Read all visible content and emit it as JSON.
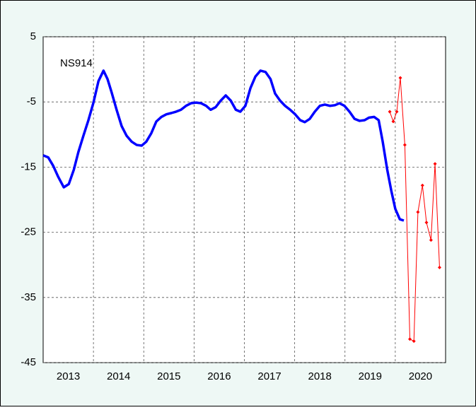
{
  "chart_data": {
    "type": "line",
    "annotation": "NS914",
    "xlim": [
      2013,
      2021
    ],
    "xgrid": [
      2014,
      2015,
      2016,
      2017,
      2018,
      2019,
      2020
    ],
    "xticks": [
      {
        "value": 2013.5,
        "label": "2013"
      },
      {
        "value": 2014.5,
        "label": "2014"
      },
      {
        "value": 2015.5,
        "label": "2015"
      },
      {
        "value": 2016.5,
        "label": "2016"
      },
      {
        "value": 2017.5,
        "label": "2017"
      },
      {
        "value": 2018.5,
        "label": "2018"
      },
      {
        "value": 2019.5,
        "label": "2019"
      },
      {
        "value": 2020.5,
        "label": "2020"
      }
    ],
    "ylim": [
      -45,
      5
    ],
    "yticks": [
      5,
      -5,
      -15,
      -25,
      -35,
      -45
    ],
    "grid": true,
    "series": [
      {
        "color": "#0000ff",
        "width": 3.5,
        "markers": false,
        "x": [
          2013.0,
          2013.1,
          2013.2,
          2013.3,
          2013.41,
          2013.51,
          2013.61,
          2013.7,
          2013.8,
          2013.9,
          2014.0,
          2014.1,
          2014.2,
          2014.28,
          2014.36,
          2014.46,
          2014.56,
          2014.66,
          2014.76,
          2014.86,
          2014.96,
          2015.05,
          2015.15,
          2015.25,
          2015.35,
          2015.45,
          2015.55,
          2015.64,
          2015.74,
          2015.84,
          2015.94,
          2016.04,
          2016.14,
          2016.24,
          2016.33,
          2016.43,
          2016.53,
          2016.63,
          2016.73,
          2016.83,
          2016.92,
          2017.02,
          2017.12,
          2017.22,
          2017.32,
          2017.42,
          2017.52,
          2017.61,
          2017.71,
          2017.81,
          2017.91,
          2018.01,
          2018.11,
          2018.2,
          2018.3,
          2018.4,
          2018.5,
          2018.6,
          2018.7,
          2018.8,
          2018.89,
          2018.99,
          2019.09,
          2019.19,
          2019.29,
          2019.39,
          2019.48,
          2019.58,
          2019.67,
          2019.75,
          2019.84,
          2019.92,
          2020.0,
          2020.09,
          2020.17
        ],
        "values": [
          -13.2,
          -13.5,
          -14.8,
          -16.5,
          -18.1,
          -17.6,
          -15.4,
          -12.7,
          -10.2,
          -7.8,
          -5.1,
          -1.8,
          -0.2,
          -1.5,
          -3.5,
          -6.2,
          -8.7,
          -10.2,
          -11.1,
          -11.6,
          -11.7,
          -11.1,
          -9.8,
          -8.0,
          -7.3,
          -6.9,
          -6.7,
          -6.5,
          -6.2,
          -5.6,
          -5.2,
          -5.1,
          -5.2,
          -5.6,
          -6.2,
          -5.8,
          -4.8,
          -4.0,
          -4.8,
          -6.2,
          -6.5,
          -5.6,
          -2.9,
          -1.1,
          -0.2,
          -0.4,
          -1.5,
          -3.7,
          -4.8,
          -5.6,
          -6.2,
          -6.9,
          -7.8,
          -8.1,
          -7.6,
          -6.5,
          -5.6,
          -5.4,
          -5.6,
          -5.5,
          -5.2,
          -5.6,
          -6.5,
          -7.6,
          -7.9,
          -7.8,
          -7.4,
          -7.3,
          -7.8,
          -11.1,
          -15.4,
          -18.6,
          -21.4,
          -23.0,
          -23.2
        ]
      },
      {
        "color": "#ff0000",
        "width": 1,
        "markers": true,
        "x": [
          2019.89,
          2019.96,
          2020.03,
          2020.1,
          2020.19,
          2020.29,
          2020.37,
          2020.45,
          2020.54,
          2020.62,
          2020.71,
          2020.79,
          2020.88
        ],
        "values": [
          -6.5,
          -8.0,
          -6.5,
          -1.3,
          -11.6,
          -41.4,
          -41.7,
          -21.9,
          -17.8,
          -23.5,
          -26.2,
          -14.5,
          -30.4
        ]
      }
    ]
  }
}
